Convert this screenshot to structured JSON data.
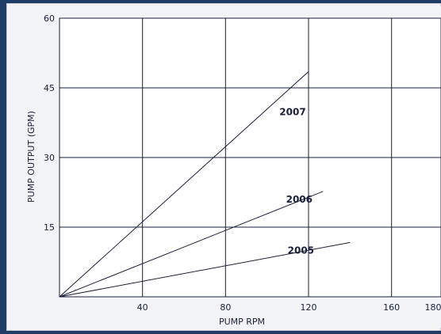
{
  "chart_data": {
    "type": "line",
    "xlabel": "PUMP RPM",
    "ylabel": "PUMP OUTPUT (GPM)",
    "xlim": [
      0,
      180
    ],
    "ylim": [
      0,
      60
    ],
    "x_ticks": [
      40,
      80,
      120,
      160,
      180
    ],
    "y_ticks": [
      15,
      30,
      45,
      60
    ],
    "grid": true,
    "series": [
      {
        "name": "2007",
        "x": [
          0,
          120
        ],
        "y": [
          0,
          48.5
        ]
      },
      {
        "name": "2006",
        "x": [
          0,
          127
        ],
        "y": [
          0,
          22.7
        ]
      },
      {
        "name": "2005",
        "x": [
          0,
          140
        ],
        "y": [
          0,
          11.7
        ]
      }
    ]
  }
}
